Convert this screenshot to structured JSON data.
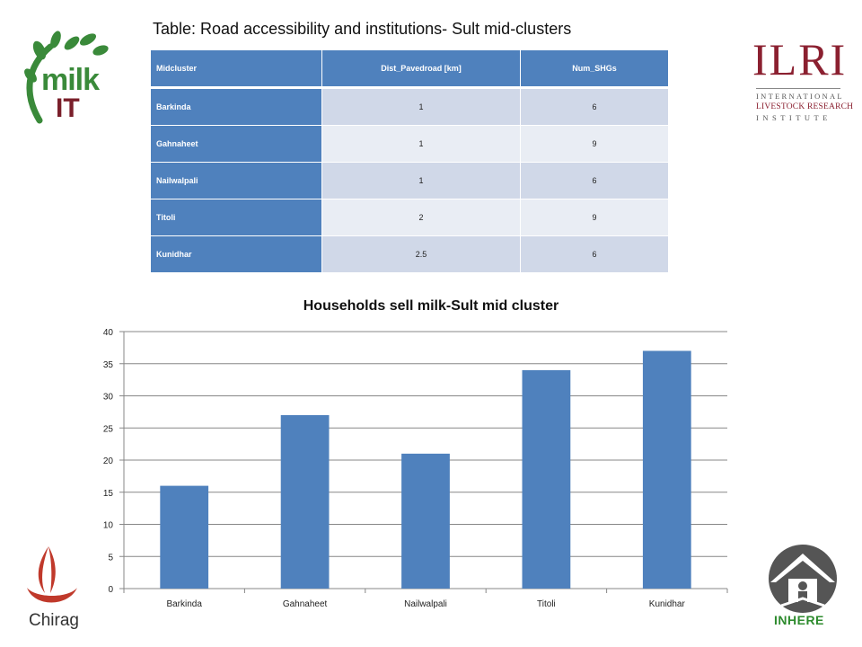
{
  "page_title": "Table: Road accessibility and institutions- Sult mid-clusters",
  "logos": {
    "milkit_top": "milk",
    "milkit_bottom": "IT",
    "ilri_big": "ILRI",
    "ilri_line1": "INTERNATIONAL",
    "ilri_line2": "LIVESTOCK RESEARCH",
    "ilri_line3": "INSTITUTE",
    "chirag": "Chirag",
    "inhere": "INHERE"
  },
  "table": {
    "headers": [
      "Midcluster",
      "Dist_Pavedroad [km]",
      "Num_SHGs"
    ],
    "rows": [
      [
        "Barkinda",
        "1",
        "6"
      ],
      [
        "Gahnaheet",
        "1",
        "9"
      ],
      [
        "Nailwalpali",
        "1",
        "6"
      ],
      [
        "Titoli",
        "2",
        "9"
      ],
      [
        "Kunidhar",
        "2.5",
        "6"
      ]
    ]
  },
  "colors": {
    "bar": "#4f81bd",
    "header": "#4f81bd",
    "row_odd": "#d0d8e8",
    "row_even": "#e9edf4",
    "ilri": "#8b2030",
    "milkit_green": "#3a8a3a"
  },
  "chart_data": {
    "type": "bar",
    "title": "Households sell milk-Sult mid cluster",
    "categories": [
      "Barkinda",
      "Gahnaheet",
      "Nailwalpali",
      "Titoli",
      "Kunidhar"
    ],
    "values": [
      16,
      27,
      21,
      34,
      37
    ],
    "xlabel": "",
    "ylabel": "",
    "ylim": [
      0,
      40
    ],
    "yticks": [
      0,
      5,
      10,
      15,
      20,
      25,
      30,
      35,
      40
    ],
    "grid": true,
    "legend": "none"
  }
}
